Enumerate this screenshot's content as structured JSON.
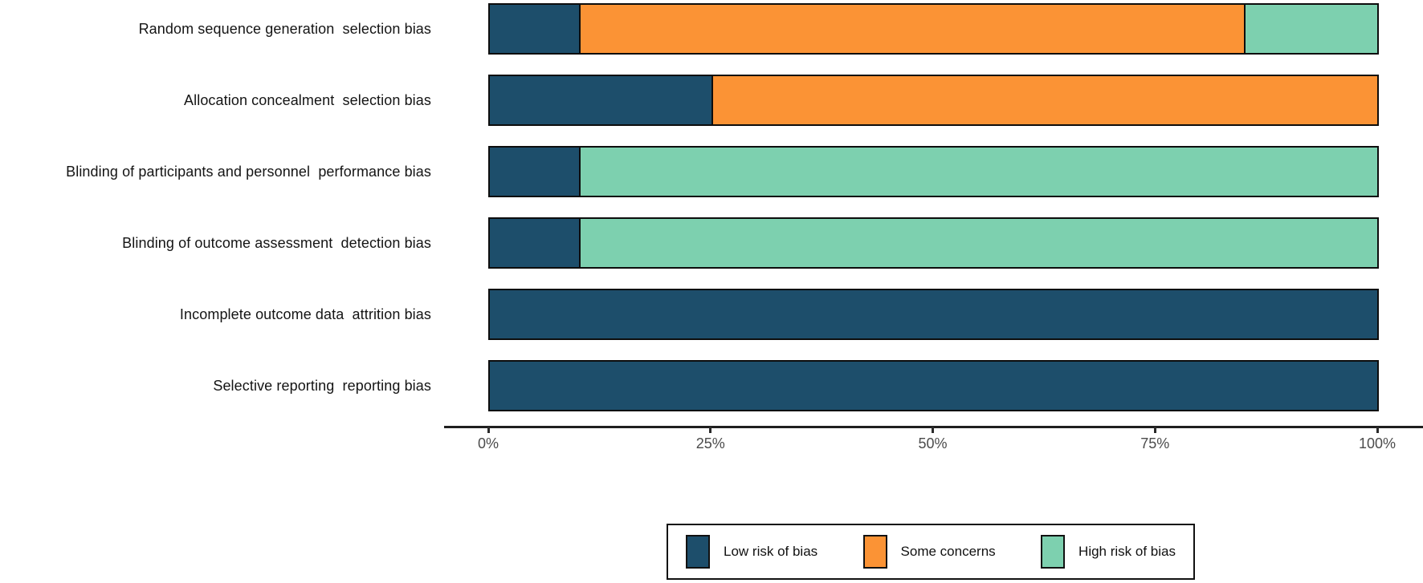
{
  "chart_data": {
    "type": "bar",
    "orientation": "horizontal",
    "stacked": true,
    "title": "",
    "xlabel": "",
    "ylabel": "",
    "grid": false,
    "categories": [
      "Random sequence generation  selection bias",
      "Allocation concealment  selection bias",
      "Blinding of participants and personnel  performance bias",
      "Blinding of outcome assessment  detection bias",
      "Incomplete outcome data  attrition bias",
      "Selective reporting  reporting bias"
    ],
    "series": [
      {
        "name": "Low risk of bias",
        "color": "#1D4E6B",
        "values": [
          10,
          25,
          10,
          10,
          100,
          100
        ]
      },
      {
        "name": "Some concerns",
        "color": "#FB9335",
        "values": [
          75,
          75,
          0,
          0,
          0,
          0
        ]
      },
      {
        "name": "High risk of bias",
        "color": "#7DD0AF",
        "values": [
          15,
          0,
          90,
          90,
          0,
          0
        ]
      }
    ],
    "x_axis": {
      "range": [
        0,
        100
      ],
      "tick_values": [
        0,
        25,
        50,
        75,
        100
      ],
      "tick_labels": [
        "0%",
        "25%",
        "50%",
        "75%",
        "100%"
      ]
    },
    "legend": {
      "position": "bottom",
      "entries": [
        "Low risk of bias",
        "Some concerns",
        "High risk of bias"
      ]
    },
    "colors": {
      "background": "#FFFFFF",
      "bar_border": "#0D0D0D",
      "axis_line": "#1F1F1F",
      "tick_text": "#4B4B4B",
      "category_text": "#141414"
    }
  }
}
